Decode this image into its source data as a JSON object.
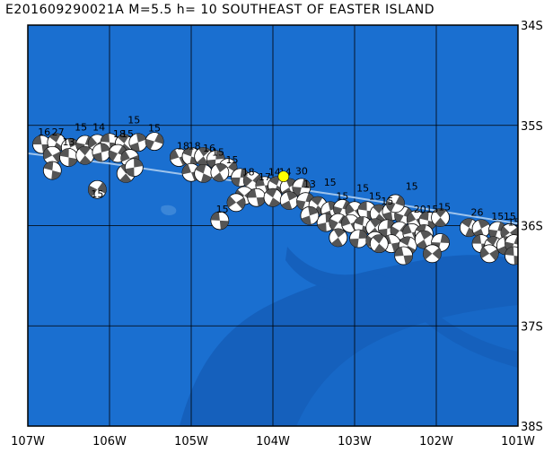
{
  "title": "E201609290021A M=5.5 h= 10 SOUTHEAST OF EASTER ISLAND",
  "map": {
    "lon_range": [
      -107,
      -101
    ],
    "lat_range": [
      -38,
      -34
    ],
    "ocean_color": "#1a6fd0",
    "deep_color": "#1560bc",
    "grid_color": "#000000",
    "ridge_color": "#9fc4ec",
    "event_color": "#ffff00",
    "lon_ticks": [
      {
        "value": -107,
        "label": "107W"
      },
      {
        "value": -106,
        "label": "106W"
      },
      {
        "value": -105,
        "label": "105W"
      },
      {
        "value": -104,
        "label": "104W"
      },
      {
        "value": -103,
        "label": "103W"
      },
      {
        "value": -102,
        "label": "102W"
      },
      {
        "value": -101,
        "label": "101W"
      }
    ],
    "lat_ticks": [
      {
        "value": -34,
        "label": "34S"
      },
      {
        "value": -35,
        "label": "35S"
      },
      {
        "value": -36,
        "label": "36S"
      },
      {
        "value": -37,
        "label": "37S"
      },
      {
        "value": -38,
        "label": "38S"
      }
    ],
    "ridge_line": [
      [
        -107,
        -35.28
      ],
      [
        -106,
        -35.38
      ],
      [
        -105,
        -35.5
      ],
      [
        -104,
        -35.6
      ],
      [
        -103,
        -35.72
      ],
      [
        -102,
        -35.85
      ],
      [
        -101,
        -35.98
      ]
    ],
    "main_event": {
      "lon": -103.87,
      "lat": -35.51
    },
    "mechanisms": [
      {
        "lon": -106.8,
        "lat": -35.1,
        "label": "16"
      },
      {
        "lon": -106.63,
        "lat": -35.1,
        "label": "27"
      },
      {
        "lon": -106.35,
        "lat": -35.05,
        "label": "15"
      },
      {
        "lon": -106.13,
        "lat": -35.05,
        "label": "14"
      },
      {
        "lon": -105.88,
        "lat": -35.12,
        "label": "18"
      },
      {
        "lon": -105.7,
        "lat": -34.98,
        "label": "15"
      },
      {
        "lon": -105.45,
        "lat": -35.06,
        "label": "15"
      },
      {
        "lon": -105.78,
        "lat": -35.12,
        "label": "15"
      },
      {
        "lon": -106.5,
        "lat": -35.2,
        "label": "13"
      },
      {
        "lon": -105.1,
        "lat": -35.24,
        "label": "18"
      },
      {
        "lon": -104.96,
        "lat": -35.24,
        "label": "18"
      },
      {
        "lon": -104.78,
        "lat": -35.26,
        "label": "16"
      },
      {
        "lon": -104.67,
        "lat": -35.3,
        "label": "15"
      },
      {
        "lon": -104.5,
        "lat": -35.38,
        "label": "15"
      },
      {
        "lon": -104.3,
        "lat": -35.5,
        "label": "18"
      },
      {
        "lon": -104.1,
        "lat": -35.55,
        "label": "17"
      },
      {
        "lon": -103.98,
        "lat": -35.5,
        "label": "14"
      },
      {
        "lon": -103.85,
        "lat": -35.5,
        "label": "14"
      },
      {
        "lon": -103.65,
        "lat": -35.49,
        "label": "30"
      },
      {
        "lon": -103.55,
        "lat": -35.62,
        "label": "13"
      },
      {
        "lon": -103.3,
        "lat": -35.6,
        "label": "15"
      },
      {
        "lon": -103.15,
        "lat": -35.74,
        "label": "15"
      },
      {
        "lon": -102.9,
        "lat": -35.66,
        "label": "15"
      },
      {
        "lon": -102.75,
        "lat": -35.74,
        "label": "15"
      },
      {
        "lon": -102.6,
        "lat": -35.79,
        "label": "15"
      },
      {
        "lon": -102.3,
        "lat": -35.64,
        "label": "15"
      },
      {
        "lon": -102.2,
        "lat": -35.87,
        "label": "20"
      },
      {
        "lon": -102.05,
        "lat": -35.87,
        "label": "15"
      },
      {
        "lon": -101.9,
        "lat": -35.85,
        "label": "15"
      },
      {
        "lon": -101.5,
        "lat": -35.9,
        "label": "26"
      },
      {
        "lon": -101.25,
        "lat": -35.94,
        "label": "15"
      },
      {
        "lon": -101.1,
        "lat": -35.94,
        "label": "15"
      },
      {
        "lon": -104.62,
        "lat": -35.87,
        "label": "15"
      },
      {
        "lon": -106.15,
        "lat": -35.72,
        "label": "15"
      },
      {
        "lon": -101.05,
        "lat": -36.0,
        "label": "15"
      }
    ],
    "beachballs": [
      [
        -106.83,
        -35.19
      ],
      [
        -106.65,
        -35.17
      ],
      [
        -106.48,
        -35.22
      ],
      [
        -106.3,
        -35.19
      ],
      [
        -106.15,
        -35.18
      ],
      [
        -106.0,
        -35.17
      ],
      [
        -105.82,
        -35.18
      ],
      [
        -105.65,
        -35.17
      ],
      [
        -105.45,
        -35.16
      ],
      [
        -106.7,
        -35.3
      ],
      [
        -106.5,
        -35.32
      ],
      [
        -106.3,
        -35.3
      ],
      [
        -106.1,
        -35.27
      ],
      [
        -105.9,
        -35.28
      ],
      [
        -105.75,
        -35.33
      ],
      [
        -106.7,
        -35.45
      ],
      [
        -105.8,
        -35.48
      ],
      [
        -105.7,
        -35.42
      ],
      [
        -106.15,
        -35.64
      ],
      [
        -105.15,
        -35.32
      ],
      [
        -105.0,
        -35.31
      ],
      [
        -104.85,
        -35.31
      ],
      [
        -104.7,
        -35.34
      ],
      [
        -104.55,
        -35.42
      ],
      [
        -105.0,
        -35.47
      ],
      [
        -104.85,
        -35.48
      ],
      [
        -104.65,
        -35.47
      ],
      [
        -104.4,
        -35.52
      ],
      [
        -104.25,
        -35.55
      ],
      [
        -104.1,
        -35.6
      ],
      [
        -103.95,
        -35.6
      ],
      [
        -103.8,
        -35.62
      ],
      [
        -103.65,
        -35.62
      ],
      [
        -104.35,
        -35.7
      ],
      [
        -104.2,
        -35.72
      ],
      [
        -104.0,
        -35.72
      ],
      [
        -103.8,
        -35.75
      ],
      [
        -103.6,
        -35.76
      ],
      [
        -104.45,
        -35.77
      ],
      [
        -104.65,
        -35.95
      ],
      [
        -103.45,
        -35.8
      ],
      [
        -103.3,
        -35.85
      ],
      [
        -103.15,
        -35.83
      ],
      [
        -103.0,
        -35.85
      ],
      [
        -102.85,
        -35.85
      ],
      [
        -102.7,
        -35.88
      ],
      [
        -102.55,
        -35.86
      ],
      [
        -102.4,
        -35.9
      ],
      [
        -102.25,
        -35.94
      ],
      [
        -102.1,
        -35.95
      ],
      [
        -101.95,
        -35.92
      ],
      [
        -103.35,
        -35.97
      ],
      [
        -103.2,
        -35.97
      ],
      [
        -103.05,
        -35.98
      ],
      [
        -102.9,
        -36.0
      ],
      [
        -102.75,
        -36.02
      ],
      [
        -102.6,
        -36.03
      ],
      [
        -102.45,
        -36.05
      ],
      [
        -102.3,
        -36.07
      ],
      [
        -102.15,
        -36.08
      ],
      [
        -103.2,
        -36.12
      ],
      [
        -102.95,
        -36.13
      ],
      [
        -102.75,
        -36.15
      ],
      [
        -102.55,
        -36.18
      ],
      [
        -102.35,
        -36.2
      ],
      [
        -102.15,
        -36.14
      ],
      [
        -101.95,
        -36.17
      ],
      [
        -102.05,
        -36.28
      ],
      [
        -102.4,
        -36.3
      ],
      [
        -101.6,
        -36.02
      ],
      [
        -101.45,
        -36.03
      ],
      [
        -101.25,
        -36.05
      ],
      [
        -101.1,
        -36.07
      ],
      [
        -101.45,
        -36.18
      ],
      [
        -101.3,
        -36.2
      ],
      [
        -101.15,
        -36.2
      ],
      [
        -101.05,
        -36.18
      ],
      [
        -101.35,
        -36.28
      ],
      [
        -101.05,
        -36.3
      ],
      [
        -102.7,
        -36.18
      ],
      [
        -103.55,
        -35.9
      ],
      [
        -102.5,
        -35.78
      ]
    ]
  }
}
